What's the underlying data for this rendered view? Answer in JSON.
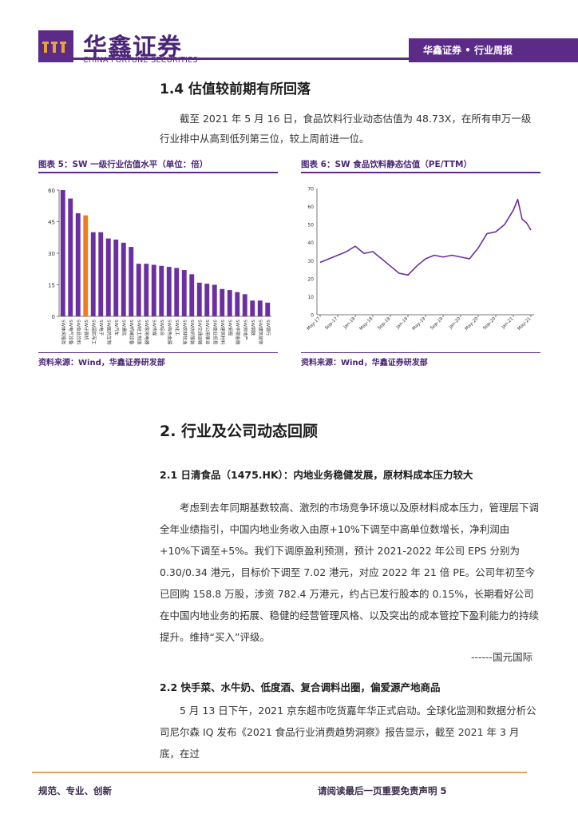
{
  "header": {
    "logo_cn": "华鑫证券",
    "logo_en": "CHINA FORTUNE SECURITIES",
    "tag": "华鑫证券 • 行业周报"
  },
  "section_1_4": {
    "title": "1.4 估值较前期有所回落",
    "para": "截至 2021 年 5 月 16 日，食品饮料行业动态估值为 48.73X，在所有申万一级行业排中从高到低列第三位，较上周前进一位。"
  },
  "fig5": {
    "title": "图表 5：SW 一级行业估值水平（单位：倍）",
    "source": "资料来源：Wind，华鑫证券研发部"
  },
  "fig6": {
    "title": "图表 6：SW 食品饮料静态估值（PE/TTM）",
    "source": "资料来源：Wind，华鑫证券研发部"
  },
  "section_2": {
    "title": "2. 行业及公司动态回顾",
    "sub1_title": "2.1 日清食品（1475.HK）：内地业务稳健发展，原材料成本压力较大",
    "sub1_para": "考虑到去年同期基数较高、激烈的市场竞争环境以及原材料成本压力，管理层下调全年业绩指引，中国内地业务收入由原+10%下调至中高单位数增长，净利润由+10%下调至+5%。我们下调原盈利预测，预计 2021-2022 年公司 EPS 分别为 0.30/0.34 港元，目标价下调至 7.02 港元，对应 2022 年 21 倍 PE。公司年初至今已回购 158.8 万股，涉资 782.4 万港元，约占已发行股本的 0.15%，长期看好公司在中国内地业务的拓展、稳健的经营管理风格、以及突出的成本管控下盈利能力的持续提升。维持“买入”评级。",
    "sub1_sig": "------国元国际",
    "sub2_title": "2.2 快手菜、水牛奶、低度酒、复合调料出圈，偏爱源产地商品",
    "sub2_para": "5 月 13 日下午，2021 京东超市吃货嘉年华正式启动。全球化监测和数据分析公司尼尔森 IQ 发布《2021 食品行业消费趋势洞察》报告显示，截至 2021 年 3 月底，在过"
  },
  "footer": {
    "left": "规范、专业、创新",
    "right": "请阅读最后一页重要免责声明 5"
  },
  "colors": {
    "brand": "#5b2b87",
    "highlight": "#f07c1a",
    "gold": "#d9a55a"
  },
  "chart_data": [
    {
      "type": "bar",
      "title": "图表 5：SW 一级行业估值水平（单位：倍）",
      "ylim": [
        0,
        60
      ],
      "yticks": [
        0,
        15,
        30,
        45,
        60
      ],
      "categories": [
        "SW休闲服务",
        "SW电气设备",
        "SW食品饮料",
        "SW计算机",
        "SW国防军工",
        "SW电子",
        "SW医药生物",
        "SW汽车",
        "SW通信",
        "SW机械设备",
        "SW轻工制造",
        "SW家用电器",
        "SW传媒",
        "SW综合",
        "SW有色金属",
        "SW化工",
        "SW农林牧渔",
        "SW纺织服装",
        "SW交通运输",
        "SW公用事业",
        "SW商业贸易",
        "SW建筑材料",
        "SW采掘",
        "SW非银金融",
        "SW房地产",
        "SW钢铁",
        "SW建筑装饰",
        "SW银行"
      ],
      "values": [
        60,
        56,
        49,
        48,
        40,
        40,
        37,
        36.5,
        35,
        33,
        25,
        25,
        24.5,
        24,
        23.5,
        23,
        22,
        20,
        16,
        15.5,
        15,
        13,
        12.5,
        11.5,
        10.5,
        7.5,
        7.5,
        6.5
      ],
      "highlight_index": 3,
      "series_color": "#6a2fa0",
      "highlight_color": "#f07c1a"
    },
    {
      "type": "line",
      "title": "图表 6：SW 食品饮料静态估值（PE/TTM）",
      "ylim": [
        0,
        70
      ],
      "yticks": [
        0,
        10,
        20,
        30,
        40,
        50,
        60,
        70
      ],
      "x_ticks": [
        "May-17",
        "Sep-17",
        "Jan-18",
        "May-18",
        "Sep-18",
        "Jan-19",
        "May-19",
        "Sep-19",
        "Jan-20",
        "May-20",
        "Sep-20",
        "Jan-21",
        "May-21"
      ],
      "x": [
        "2017-05",
        "2017-07",
        "2017-09",
        "2017-11",
        "2018-01",
        "2018-03",
        "2018-05",
        "2018-07",
        "2018-09",
        "2018-11",
        "2019-01",
        "2019-03",
        "2019-05",
        "2019-07",
        "2019-09",
        "2019-11",
        "2020-01",
        "2020-03",
        "2020-05",
        "2020-07",
        "2020-09",
        "2020-11",
        "2021-01",
        "2021-02",
        "2021-03",
        "2021-04",
        "2021-05"
      ],
      "values": [
        29,
        31,
        33,
        35,
        38,
        34,
        35,
        31,
        27,
        23,
        22,
        27,
        31,
        33,
        32,
        33,
        32,
        31,
        37,
        45,
        46,
        50,
        58,
        64,
        53,
        51,
        47
      ],
      "series_color": "#6a2fa0"
    }
  ]
}
